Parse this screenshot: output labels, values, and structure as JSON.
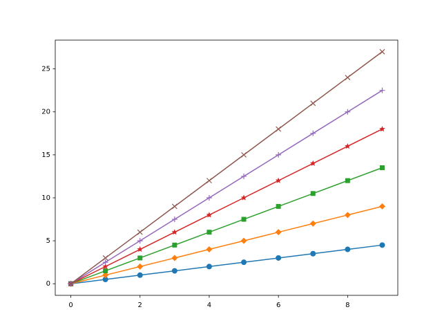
{
  "chart_data": {
    "type": "line",
    "x": [
      0,
      1,
      2,
      3,
      4,
      5,
      6,
      7,
      8,
      9
    ],
    "series": [
      {
        "color": "#1f77b4",
        "marker": "circle",
        "values": [
          0,
          0.5,
          1,
          1.5,
          2,
          2.5,
          3,
          3.5,
          4,
          4.5
        ]
      },
      {
        "color": "#ff7f0e",
        "marker": "diamond",
        "values": [
          0,
          1,
          2,
          3,
          4,
          5,
          6,
          7,
          8,
          9
        ]
      },
      {
        "color": "#2ca02c",
        "marker": "square",
        "values": [
          0,
          1.5,
          3,
          4.5,
          6,
          7.5,
          9,
          10.5,
          12,
          13.5
        ]
      },
      {
        "color": "#d62728",
        "marker": "star",
        "values": [
          0,
          2,
          4,
          6,
          8,
          10,
          12,
          14,
          16,
          18
        ]
      },
      {
        "color": "#9467bd",
        "marker": "plus",
        "values": [
          0,
          2.5,
          5,
          7.5,
          10,
          12.5,
          15,
          17.5,
          20,
          22.5
        ]
      },
      {
        "color": "#8c564b",
        "marker": "x",
        "values": [
          0,
          3,
          6,
          9,
          12,
          15,
          18,
          21,
          24,
          27
        ]
      }
    ],
    "xlim": [
      -0.45,
      9.45
    ],
    "ylim": [
      -1.35,
      28.35
    ],
    "xticks": [
      0,
      2,
      4,
      6,
      8
    ],
    "yticks": [
      0,
      5,
      10,
      15,
      20,
      25
    ],
    "grid": false
  }
}
